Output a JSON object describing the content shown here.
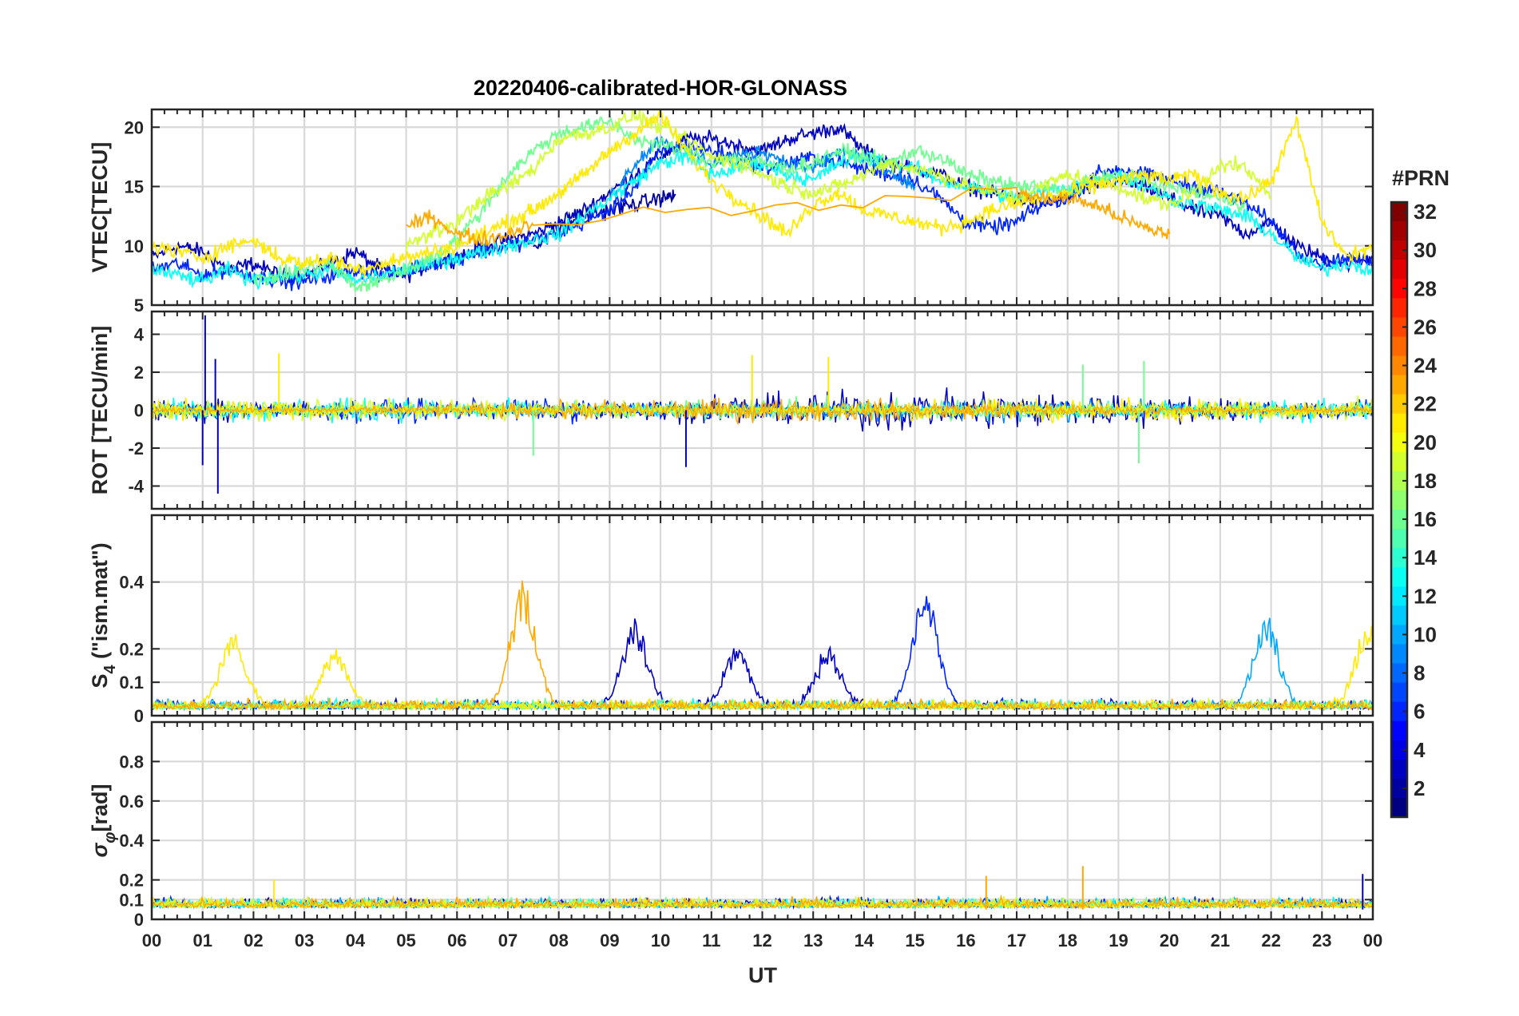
{
  "title": "20220406-calibrated-HOR-GLONASS",
  "colorbar": {
    "title": "#PRN",
    "range": [
      1,
      32
    ],
    "ticks": [
      "2",
      "4",
      "6",
      "8",
      "10",
      "12",
      "14",
      "16",
      "18",
      "20",
      "22",
      "24",
      "26",
      "28",
      "30",
      "32"
    ],
    "colormap": "jet"
  },
  "chart_data": [
    {
      "type": "line",
      "ylabel": "VTEC[TECU]",
      "ylim": [
        5,
        21.5
      ],
      "yticks": [
        "5",
        "10",
        "15",
        "20"
      ],
      "xlim": [
        0,
        24
      ],
      "series": [
        {
          "prn": 3,
          "x": [
            0,
            0.5,
            1,
            1.5,
            2,
            2.5,
            3,
            3.5,
            4,
            4.5,
            5,
            5.5,
            6,
            6.5,
            7,
            7.5,
            8,
            8.5,
            9,
            9.5,
            10,
            10.5,
            11,
            11.5,
            12,
            12.5,
            13,
            13.5,
            14,
            14.5,
            15,
            15.5,
            16,
            16.5,
            17,
            17.5,
            18,
            18.5,
            19,
            19.5,
            20,
            20.5,
            21,
            21.5,
            22,
            22.5,
            23,
            23.5,
            24
          ],
          "y": [
            9,
            10,
            9.5,
            8,
            8.5,
            7.5,
            7.5,
            8.5,
            9.5,
            8,
            7.5,
            8.5,
            9,
            10,
            10.5,
            11,
            12,
            13,
            14.5,
            16,
            17.5,
            19,
            19,
            18.5,
            18,
            19,
            19.5,
            20,
            18,
            17,
            16.5,
            16,
            15,
            14.5,
            14,
            13.5,
            14,
            15,
            15.5,
            15,
            14,
            13,
            12.5,
            11,
            12,
            10,
            9,
            8.5,
            9
          ]
        },
        {
          "prn": 2,
          "x": [
            7.5,
            8,
            8.5,
            9,
            9.5,
            10,
            10.3
          ],
          "y": [
            10,
            11.5,
            12.5,
            13,
            13.5,
            14,
            14.3
          ]
        },
        {
          "prn": 6,
          "x": [
            0,
            0.5,
            1,
            1.5,
            2,
            2.5,
            3,
            3.5,
            4,
            4.5,
            5,
            5.5,
            6,
            6.5,
            7,
            7.5,
            8,
            8.5,
            9,
            9.5,
            10,
            10.5,
            11,
            11.5,
            12,
            12.5,
            13,
            13.5,
            14,
            14.5,
            15,
            15.5,
            16,
            16.5,
            17,
            17.5,
            18,
            18.5,
            19,
            19.5,
            20,
            20.5,
            21,
            21.5,
            22,
            22.5,
            23,
            23.5,
            24
          ],
          "y": [
            8,
            8.5,
            7.5,
            8,
            7.5,
            7,
            7,
            7.5,
            8,
            7.5,
            8,
            8.5,
            9,
            9.5,
            10,
            10.5,
            11,
            12,
            13,
            15,
            18,
            18.5,
            18,
            17.5,
            16.5,
            17,
            17.5,
            17,
            16.5,
            16,
            15.5,
            14,
            12,
            11.5,
            12,
            13.5,
            14,
            16,
            16.5,
            16,
            15.5,
            15,
            14.5,
            13.5,
            12,
            9.5,
            8.5,
            9,
            8.5
          ]
        },
        {
          "prn": 9,
          "x": [
            9,
            9.5,
            10,
            10.5,
            11,
            11.5,
            12,
            12.5,
            13,
            13.5,
            14,
            14.5,
            15
          ],
          "y": [
            14,
            17,
            19,
            18,
            17,
            17.5,
            18,
            17,
            16.5,
            18,
            17.5,
            16,
            15
          ]
        },
        {
          "prn": 13,
          "x": [
            0,
            0.5,
            1,
            1.5,
            2,
            2.5,
            3,
            3.5,
            4,
            4.5,
            5,
            5.5,
            6,
            6.5,
            7,
            7.5,
            8,
            8.5,
            9,
            9.5,
            10,
            10.5,
            11,
            11.5,
            12,
            12.5,
            13,
            13.5,
            14,
            14.5,
            15,
            15.5,
            16,
            16.5,
            17,
            17.5,
            18,
            18.5,
            19,
            19.5,
            20,
            20.5,
            21,
            21.5,
            22,
            22.5,
            23,
            23.5,
            24
          ],
          "y": [
            8,
            7.5,
            7,
            8,
            7,
            7.5,
            7.5,
            8,
            7,
            7.5,
            8,
            8.5,
            9,
            9.5,
            10,
            10.5,
            11,
            12.5,
            14,
            15.5,
            17,
            17.5,
            16,
            16.5,
            17,
            16,
            15.5,
            17,
            17.5,
            17,
            16.5,
            15.5,
            15,
            14.5,
            14,
            14.5,
            15,
            15.5,
            16,
            15,
            14,
            13.5,
            13,
            12.5,
            11,
            9,
            8,
            8.5,
            8
          ]
        },
        {
          "prn": 16,
          "x": [
            2,
            2.5,
            3,
            3.5,
            4,
            4.5,
            5,
            5.5,
            6,
            6.5,
            7,
            7.5,
            8,
            8.5,
            9,
            9.5,
            10,
            10.5,
            11,
            11.5,
            12,
            12.5,
            13,
            13.5,
            14,
            14.5,
            15,
            15.5,
            16,
            16.5,
            17,
            17.5,
            18,
            18.5,
            19,
            19.5,
            20,
            20.5,
            21,
            21.5
          ],
          "y": [
            7,
            7.5,
            8,
            8.5,
            6.5,
            7,
            8,
            9,
            10.5,
            13,
            16,
            18,
            19.5,
            20,
            20.5,
            19,
            18.5,
            18,
            17,
            17.5,
            17,
            16.5,
            17,
            18,
            17.5,
            17,
            18,
            17.5,
            16,
            15.5,
            15,
            15,
            14.5,
            15.5,
            16,
            15.5,
            15,
            14.5,
            14,
            13.5
          ]
        },
        {
          "prn": 19,
          "x": [
            5,
            5.5,
            6,
            6.5,
            7,
            7.5,
            8,
            8.5,
            9,
            9.5,
            10,
            10.5,
            11,
            11.5,
            12,
            12.5,
            13,
            13.5,
            14,
            14.5,
            15,
            15.5,
            16,
            16.5,
            17,
            17.5,
            18,
            18.5,
            19,
            19.5,
            20,
            20.5,
            21,
            21.5,
            22
          ],
          "y": [
            10,
            11,
            12,
            14,
            15,
            16.5,
            19,
            19.5,
            20,
            21,
            20,
            19,
            17.5,
            17,
            16,
            15,
            14.5,
            15,
            16,
            17,
            16.5,
            16,
            15,
            14.5,
            14,
            15,
            16,
            15.5,
            15,
            14,
            13.5,
            14.5,
            17,
            16.5,
            14
          ]
        },
        {
          "prn": 21,
          "x": [
            0,
            0.5,
            1,
            1.5,
            2,
            2.5,
            3,
            3.5,
            4,
            4.5,
            5,
            5.5,
            6,
            6.5,
            7,
            7.5,
            8,
            8.5,
            9,
            9.5,
            10,
            10.5,
            11,
            11.5,
            12,
            12.5,
            13,
            13.5,
            14,
            14.5,
            15,
            15.5,
            16,
            16.5,
            17,
            17.5,
            18,
            18.5,
            19,
            19.5,
            20,
            20.5,
            21,
            21.5,
            22,
            22.5,
            23,
            23.5,
            24
          ],
          "y": [
            10,
            9.5,
            9,
            10,
            10.5,
            9,
            8.5,
            9,
            8,
            8.5,
            9,
            9.5,
            10,
            11,
            12,
            13,
            14.5,
            16,
            18,
            19.5,
            21,
            18,
            15.5,
            14,
            12.5,
            11,
            13.5,
            14.5,
            13,
            12.5,
            12,
            11.5,
            12,
            13,
            13.5,
            14,
            14.5,
            15,
            15.5,
            16,
            15.5,
            16,
            14.5,
            14,
            15.5,
            20.5,
            12,
            9,
            10
          ]
        },
        {
          "prn": 23,
          "x": [
            5,
            5.5,
            6,
            6.5,
            7,
            7.5,
            17,
            17.5,
            18,
            18.5,
            19,
            19.5,
            20
          ],
          "y": [
            11.5,
            12.5,
            11,
            10.5,
            11,
            12,
            14.5,
            14,
            14,
            13.5,
            12.5,
            11.5,
            11
          ]
        }
      ]
    },
    {
      "type": "line",
      "ylabel": "ROT [TECU/min]",
      "ylim": [
        -5.2,
        5.2
      ],
      "yticks": [
        "-4",
        "-2",
        "0",
        "2",
        "4"
      ],
      "xlim": [
        0,
        24
      ],
      "spikes": [
        {
          "prn": 3,
          "x": 1.05,
          "y": 5.0
        },
        {
          "prn": 3,
          "x": 1.0,
          "y": -2.9
        },
        {
          "prn": 3,
          "x": 1.3,
          "y": -4.4
        },
        {
          "prn": 3,
          "x": 1.25,
          "y": 2.7
        },
        {
          "prn": 3,
          "x": 10.5,
          "y": -3.0
        },
        {
          "prn": 21,
          "x": 2.5,
          "y": 3.0
        },
        {
          "prn": 21,
          "x": 11.8,
          "y": 2.9
        },
        {
          "prn": 21,
          "x": 13.3,
          "y": 2.8
        },
        {
          "prn": 16,
          "x": 7.5,
          "y": -2.4
        },
        {
          "prn": 16,
          "x": 19.4,
          "y": -2.8
        },
        {
          "prn": 16,
          "x": 18.3,
          "y": 2.4
        },
        {
          "prn": 16,
          "x": 19.5,
          "y": 2.6
        }
      ]
    },
    {
      "type": "line",
      "ylabel": "S_4 (\"ism.mat\")",
      "ylim": [
        0,
        0.6
      ],
      "yticks": [
        "0",
        "0.1",
        "0.2",
        "0.4"
      ],
      "xlim": [
        0,
        24
      ],
      "bumps": [
        {
          "prn": 21,
          "center": 1.6,
          "height": 0.2
        },
        {
          "prn": 21,
          "center": 3.6,
          "height": 0.15
        },
        {
          "prn": 23,
          "center": 7.3,
          "height": 0.34
        },
        {
          "prn": 3,
          "center": 9.5,
          "height": 0.23
        },
        {
          "prn": 3,
          "center": 11.5,
          "height": 0.16
        },
        {
          "prn": 3,
          "center": 13.3,
          "height": 0.16
        },
        {
          "prn": 6,
          "center": 15.2,
          "height": 0.33
        },
        {
          "prn": 10,
          "center": 21.9,
          "height": 0.25
        },
        {
          "prn": 21,
          "center": 23.9,
          "height": 0.23
        }
      ]
    },
    {
      "type": "line",
      "ylabel": "σ_φ[rad]",
      "ylim": [
        0,
        1.0
      ],
      "yticks": [
        "0",
        "0.1",
        "0.2",
        "0.4",
        "0.6",
        "0.8"
      ],
      "xlim": [
        0,
        24
      ],
      "spikes": [
        {
          "prn": 23,
          "x": 18.3,
          "y": 0.27
        },
        {
          "prn": 23,
          "x": 16.4,
          "y": 0.22
        },
        {
          "prn": 3,
          "x": 23.8,
          "y": 0.23
        },
        {
          "prn": 21,
          "x": 2.4,
          "y": 0.2
        }
      ]
    }
  ],
  "x_axis": {
    "label": "UT",
    "ticks": [
      "00",
      "01",
      "02",
      "03",
      "04",
      "05",
      "06",
      "07",
      "08",
      "09",
      "10",
      "11",
      "12",
      "13",
      "14",
      "15",
      "16",
      "17",
      "18",
      "19",
      "20",
      "21",
      "22",
      "23",
      "00"
    ]
  }
}
